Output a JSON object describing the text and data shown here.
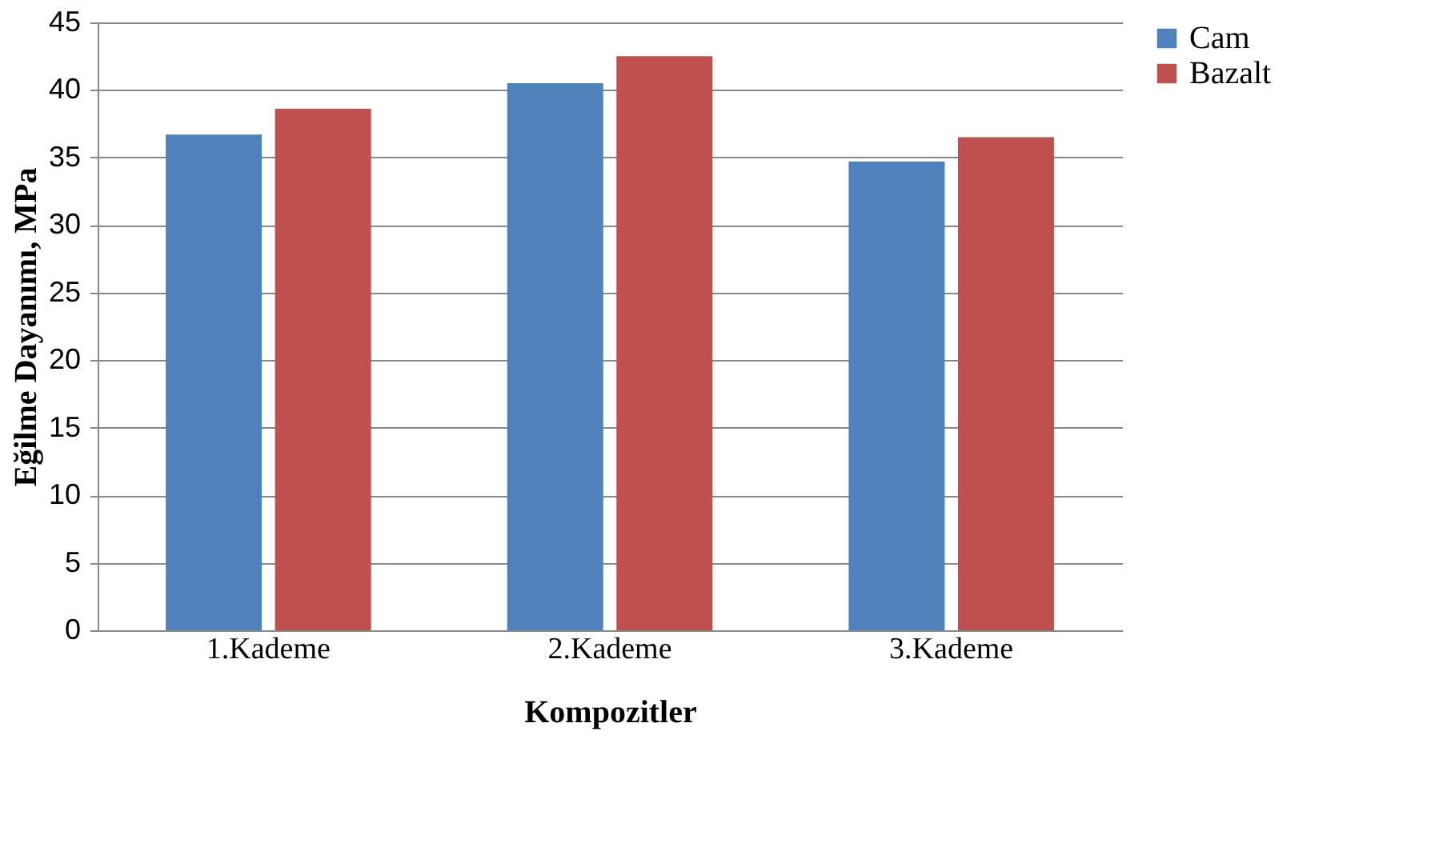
{
  "chart_data": {
    "type": "bar",
    "xlabel": "Kompozitler",
    "ylabel": "Eğilme Dayanımı, MPa",
    "categories": [
      "1.Kademe",
      "2.Kademe",
      "3.Kademe"
    ],
    "series": [
      {
        "name": "Cam",
        "color": "#4f81bd",
        "values": [
          36.7,
          40.5,
          34.7
        ]
      },
      {
        "name": "Bazalt",
        "color": "#c0504d",
        "values": [
          38.6,
          42.5,
          36.5
        ]
      }
    ],
    "ylim": [
      0,
      45
    ],
    "yticks": [
      0,
      5,
      10,
      15,
      20,
      25,
      30,
      35,
      40,
      45
    ],
    "grid": "y",
    "legend": "right"
  }
}
